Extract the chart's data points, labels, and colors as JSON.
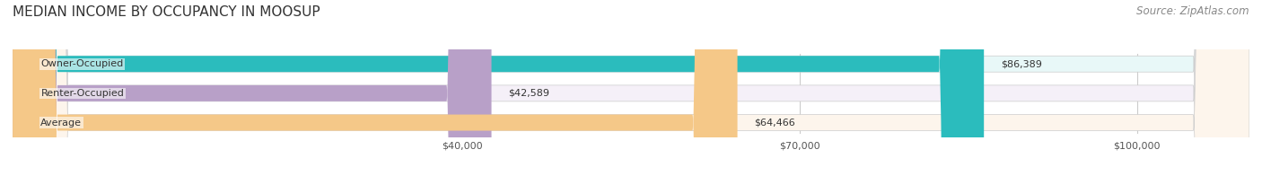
{
  "title": "MEDIAN INCOME BY OCCUPANCY IN MOOSUP",
  "source": "Source: ZipAtlas.com",
  "categories": [
    "Owner-Occupied",
    "Renter-Occupied",
    "Average"
  ],
  "values": [
    86389,
    42589,
    64466
  ],
  "labels": [
    "$86,389",
    "$42,589",
    "$64,466"
  ],
  "bar_colors": [
    "#2bbcbd",
    "#b8a0c8",
    "#f5c888"
  ],
  "background_colors": [
    "#e8f8f8",
    "#f5f0f8",
    "#fdf5ec"
  ],
  "xlim": [
    0,
    110000
  ],
  "xticks": [
    40000,
    70000,
    100000
  ],
  "xticklabels": [
    "$40,000",
    "$70,000",
    "$100,000"
  ],
  "title_fontsize": 11,
  "source_fontsize": 8.5,
  "label_fontsize": 8,
  "bar_height": 0.55
}
